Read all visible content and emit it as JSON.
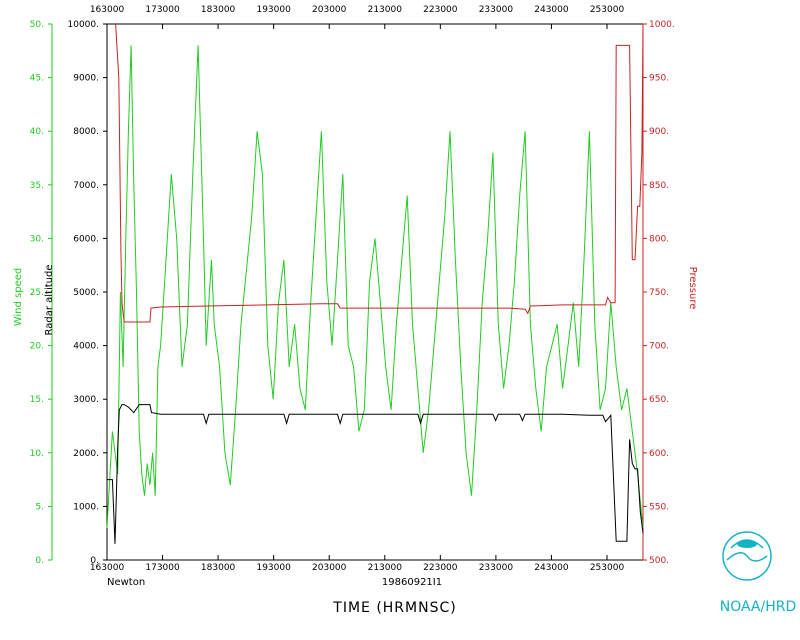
{
  "chart_data": {
    "type": "line",
    "xlabel": "TIME (HRMNSC)",
    "x_ticks": [
      "163000",
      "173000",
      "183000",
      "193000",
      "203000",
      "213000",
      "223000",
      "233000",
      "243000",
      "253000"
    ],
    "x_ticks_top": [
      "163000",
      "173000",
      "183000",
      "193000",
      "203000",
      "213000",
      "223000",
      "233000",
      "243000",
      "253000"
    ],
    "x_range": [
      0,
      100
    ],
    "footer_left": "Newton",
    "footer_center": "19860921I1",
    "logo_text": "NOAA/HRD",
    "axes": {
      "wind": {
        "label": "Wind speed",
        "range": [
          0,
          50
        ],
        "ticks": [
          "0.",
          "5.",
          "10.",
          "15.",
          "20.",
          "25.",
          "30.",
          "35.",
          "40.",
          "45.",
          "50."
        ],
        "color": "#22cc22"
      },
      "altitude": {
        "label": "Radar altitude",
        "range": [
          0,
          10000
        ],
        "ticks": [
          "0.",
          "1000.",
          "2000.",
          "3000.",
          "4000.",
          "5000.",
          "6000.",
          "7000.",
          "8000.",
          "9000.",
          "10000."
        ],
        "color": "#000000"
      },
      "pressure": {
        "label": "Pressure",
        "range": [
          500,
          1000
        ],
        "ticks": [
          "500.",
          "550.",
          "600.",
          "650.",
          "700.",
          "750.",
          "800.",
          "850.",
          "900.",
          "950.",
          "1000."
        ],
        "color": "#cc2222"
      }
    },
    "series": [
      {
        "name": "Wind speed",
        "axis": "wind",
        "color": "#22cc22",
        "x": [
          0,
          1,
          2,
          2.5,
          3,
          3.5,
          4,
          4.5,
          5,
          5.5,
          6,
          6.5,
          7,
          7.5,
          8,
          8.5,
          9,
          9.5,
          10,
          11,
          12,
          13,
          14,
          15,
          16,
          17,
          18,
          18.5,
          19,
          19.5,
          20,
          21,
          22,
          23,
          24,
          25,
          26,
          27,
          28,
          29,
          30,
          31,
          32,
          33,
          34,
          35,
          36,
          37,
          38,
          39,
          40,
          41,
          42,
          43,
          44,
          45,
          46,
          47,
          48,
          49,
          50,
          51,
          52,
          53,
          54,
          55,
          56,
          57,
          58,
          59,
          60,
          61,
          62,
          63,
          64,
          65,
          66,
          67,
          68,
          69,
          70,
          71,
          72,
          73,
          74,
          75,
          76,
          77,
          78,
          79,
          80,
          81,
          82,
          83,
          84,
          85,
          86,
          87,
          88,
          89,
          90,
          91,
          92,
          93,
          94,
          95,
          96,
          97,
          98,
          99,
          100
        ],
        "values": [
          3,
          12,
          8,
          25,
          18,
          30,
          40,
          48,
          35,
          25,
          12,
          8,
          6,
          9,
          7,
          10,
          6,
          18,
          20,
          28,
          36,
          30,
          18,
          22,
          36,
          48,
          30,
          20,
          24,
          28,
          22,
          18,
          10,
          7,
          14,
          22,
          27,
          32,
          40,
          36,
          20,
          15,
          24,
          28,
          18,
          22,
          16,
          14,
          24,
          32,
          40,
          26,
          20,
          28,
          36,
          20,
          18,
          12,
          14,
          26,
          30,
          24,
          18,
          14,
          22,
          28,
          34,
          22,
          16,
          10,
          14,
          20,
          26,
          32,
          40,
          28,
          18,
          10,
          6,
          14,
          24,
          30,
          38,
          22,
          16,
          20,
          26,
          34,
          40,
          22,
          16,
          12,
          18,
          20,
          22,
          16,
          20,
          24,
          18,
          28,
          40,
          22,
          14,
          16,
          24,
          18,
          14,
          16,
          12,
          8,
          3
        ],
        "note": "approximate envelope read from a very noisy trace"
      },
      {
        "name": "Pressure",
        "axis": "pressure",
        "color": "#cc2222",
        "x": [
          1.6,
          2.2,
          2.6,
          2.8,
          3.0,
          3.2,
          8.0,
          8.2,
          10,
          20,
          30,
          40,
          43,
          43.5,
          44,
          50,
          60,
          70,
          75,
          78,
          78.5,
          79,
          80,
          85,
          90,
          93,
          93.4,
          94,
          94.8,
          95,
          96,
          97,
          97.5,
          98,
          98.5,
          99,
          99.4,
          99.8,
          100
        ],
        "values": [
          1000,
          950,
          790,
          740,
          730,
          722,
          722,
          735,
          736,
          737,
          738,
          739,
          739,
          735,
          735,
          735,
          735,
          735,
          735,
          734,
          730,
          737,
          737,
          738,
          738,
          738,
          745,
          740,
          740,
          980,
          980,
          980,
          980,
          780,
          780,
          830,
          830,
          880,
          1000
        ]
      },
      {
        "name": "Radar altitude",
        "axis": "altitude",
        "color": "#000000",
        "x": [
          0,
          1,
          1.5,
          2,
          2.3,
          2.8,
          3.2,
          4,
          5,
          6,
          7,
          8,
          8.3,
          10,
          15,
          18,
          18.5,
          19,
          20,
          25,
          30,
          33,
          33.5,
          34,
          40,
          43,
          43.5,
          44,
          50,
          55,
          58,
          58.5,
          59,
          60,
          65,
          70,
          72,
          72.5,
          73,
          75,
          77,
          77.5,
          78,
          80,
          85,
          90,
          92.5,
          93,
          94,
          95,
          96,
          97,
          97.5,
          98,
          98.5,
          99,
          99.5,
          100
        ],
        "values": [
          1500,
          1500,
          300,
          2100,
          2800,
          2900,
          2900,
          2850,
          2750,
          2900,
          2900,
          2900,
          2750,
          2720,
          2720,
          2720,
          2550,
          2720,
          2720,
          2720,
          2720,
          2720,
          2550,
          2720,
          2720,
          2720,
          2550,
          2720,
          2720,
          2720,
          2720,
          2550,
          2720,
          2720,
          2720,
          2720,
          2720,
          2600,
          2720,
          2720,
          2720,
          2600,
          2720,
          2720,
          2720,
          2700,
          2700,
          2580,
          2700,
          350,
          350,
          350,
          2250,
          1800,
          1700,
          1700,
          900,
          500
        ]
      }
    ]
  }
}
